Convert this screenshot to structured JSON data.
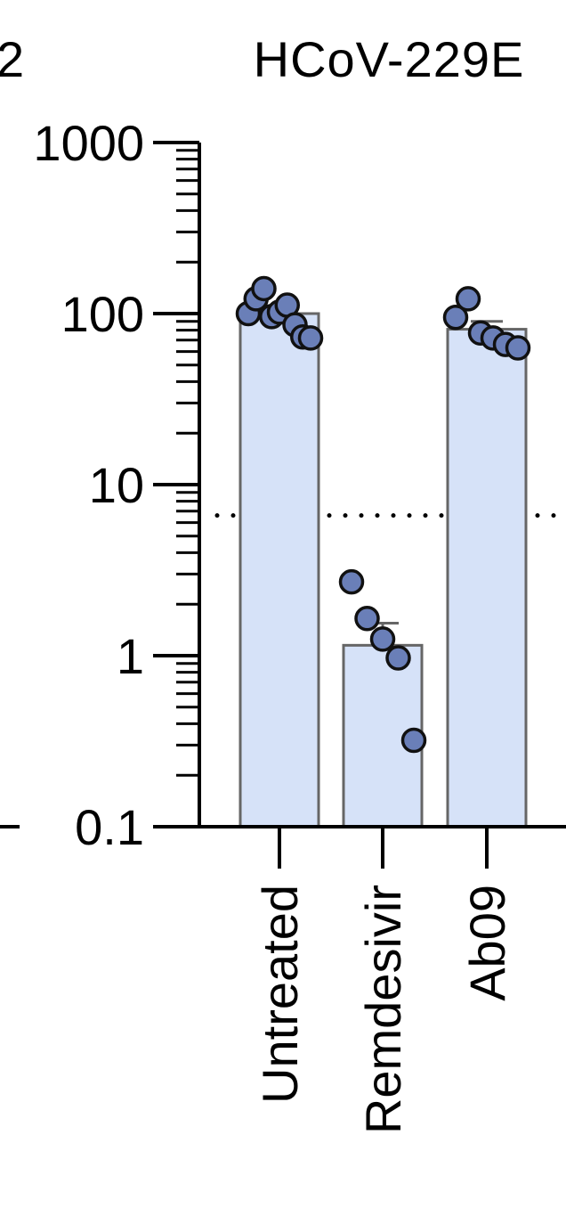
{
  "chart_data": {
    "type": "bar",
    "title": "HCoV-229E",
    "left_clipped_fragment": "2",
    "y_scale": "log",
    "ylim": [
      0.1,
      1000
    ],
    "ytick_labels": [
      "1000",
      "100",
      "10",
      "1",
      "0.1"
    ],
    "ytick_values": [
      1000,
      100,
      10,
      1,
      0.1
    ],
    "categories": [
      "Untreated",
      "Remdesivir",
      "Ab09"
    ],
    "values": [
      100,
      1.15,
      81
    ],
    "error_upper": [
      null,
      1.55,
      90
    ],
    "points": [
      [
        100,
        122,
        140,
        96,
        102,
        112,
        86,
        73,
        72
      ],
      [
        2.7,
        1.65,
        1.25,
        0.97,
        0.32
      ],
      [
        95,
        122,
        77,
        72,
        66,
        63
      ]
    ],
    "threshold": 6.6,
    "colors": {
      "bar_fill": "#d6e2f8",
      "bar_edge": "#666666",
      "point_fill": "#6a7fb8",
      "point_edge": "#111111"
    }
  }
}
